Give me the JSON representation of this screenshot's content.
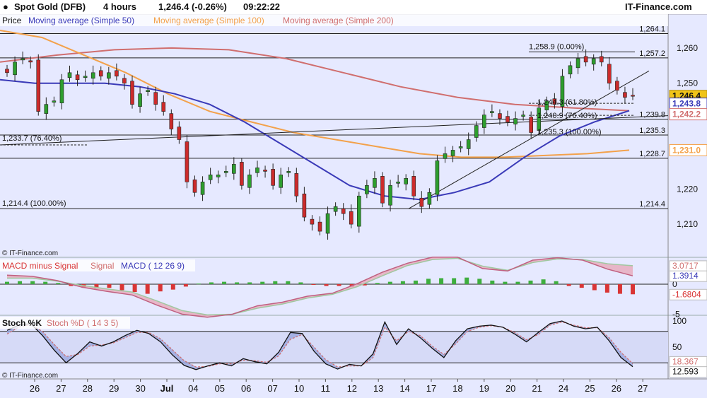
{
  "header": {
    "instrument": "Spot Gold (DFB)",
    "timeframe": "4 hours",
    "last_change": "1,246.4 (-0.26%)",
    "time": "09:22:22",
    "brand": "IT-Finance.com",
    "copyright": "© IT-Finance.com"
  },
  "legend": {
    "price": "Price",
    "ma50": "Moving average (Simple 50)",
    "ma100": "Moving average (Simple 100)",
    "ma200": "Moving average (Simple 200)",
    "macd_hist": "MACD minus Signal",
    "macd_signal": "Signal",
    "macd_main": "MACD ( 12 26 9)",
    "stoch_k": "Stoch %K",
    "stoch_d": "Stoch %D ( 14 3 5)"
  },
  "colors": {
    "background": "#e6e9ff",
    "candle_up": "#2e9e2e",
    "candle_down": "#cc2b2b",
    "ma50": "#3a3ab8",
    "ma100": "#f3a14a",
    "ma200": "#d06e6e",
    "hist_up": "#3fae3f",
    "hist_down": "#d93535",
    "macd_fill": "#9fd09f",
    "signal_fill": "#e7a0b0"
  },
  "chart_data": [
    {
      "type": "candlestick",
      "title": "Spot Gold (DFB) 4 hours",
      "ylim": [
        1203,
        1266
      ],
      "yticks": [
        1210,
        1220,
        1230,
        1240,
        1250,
        1260
      ],
      "ytick_labels": [
        "1,210",
        "1,220",
        "",
        "",
        "1,250",
        "1,260"
      ],
      "xtick_labels": [
        "26",
        "27",
        "28",
        "29",
        "30",
        "Jul",
        "04",
        "05",
        "06",
        "07",
        "10",
        "11",
        "12",
        "13",
        "14",
        "17",
        "18",
        "19",
        "20",
        "21",
        "24",
        "25",
        "26",
        "27"
      ],
      "series": [
        {
          "name": "Price",
          "closes": [
            1253,
            1256,
            1257,
            1256,
            1242,
            1244,
            1245,
            1251,
            1253,
            1251,
            1252,
            1253,
            1252,
            1253,
            1252,
            1250,
            1244,
            1247,
            1248,
            1244,
            1242,
            1237,
            1234,
            1222,
            1219,
            1222,
            1224,
            1224,
            1225,
            1227,
            1221,
            1224,
            1226,
            1225,
            1221,
            1224,
            1225,
            1218,
            1212,
            1210,
            1208,
            1213,
            1215,
            1213,
            1210,
            1218,
            1221,
            1223,
            1216,
            1221,
            1222,
            1223,
            1218,
            1215,
            1219,
            1228,
            1230,
            1231,
            1232,
            1234,
            1238,
            1241,
            1242,
            1240,
            1239,
            1240,
            1241,
            1236,
            1243,
            1245,
            1244,
            1252,
            1255,
            1257,
            1256,
            1257,
            1256,
            1250,
            1248,
            1246,
            1246.4
          ]
        },
        {
          "name": "Moving average (Simple 50)",
          "values": [
            1251,
            1250,
            1250,
            1250,
            1249,
            1247,
            1244,
            1239,
            1233,
            1227,
            1221,
            1218,
            1217,
            1219,
            1222,
            1229,
            1235,
            1239,
            1242.2
          ]
        },
        {
          "name": "Moving average (Simple 100)",
          "values": [
            1265,
            1263,
            1258,
            1253,
            1247,
            1242,
            1239,
            1236,
            1234,
            1232,
            1230,
            1229,
            1229,
            1229.5,
            1230,
            1231
          ]
        },
        {
          "name": "Moving average (Simple 200)",
          "values": [
            1256,
            1258,
            1259.5,
            1260,
            1259.5,
            1257,
            1253,
            1249,
            1246,
            1244,
            1243,
            1242.2
          ]
        }
      ],
      "horizontal_levels": [
        {
          "value": 1264.1,
          "label": "1,264.1"
        },
        {
          "value": 1257.2,
          "label": "1,257.2"
        },
        {
          "value": 1239.8,
          "label": "1,239.8"
        },
        {
          "value": 1235.3,
          "label": "1,235.3"
        },
        {
          "value": 1228.7,
          "label": "1,228.7"
        },
        {
          "value": 1214.4,
          "label": "1,214.4"
        }
      ],
      "price_tags": [
        {
          "value": 1246.4,
          "label": "1,246.4",
          "color": "#f0c419"
        },
        {
          "value": 1243.8,
          "label": "1,243.8",
          "color": "#3a3ab8"
        },
        {
          "value": 1242.2,
          "label": "1,242.2",
          "color": "#d06e6e"
        },
        {
          "value": 1231.0,
          "label": "1,231.0",
          "color": "#f3a14a"
        }
      ],
      "fibonacci_labels": [
        {
          "label": "1,258.9 (0.00%)",
          "value": 1258.9
        },
        {
          "label": "1,244.3 (61.80%)",
          "value": 1244.3
        },
        {
          "label": "1,240.9 (76.40%)",
          "value": 1240.9
        },
        {
          "label": "1,235.3 (100.00%)",
          "value": 1235.3
        },
        {
          "label": "1,233.7 (76.40%)",
          "value": 1233.7
        },
        {
          "label": "1,214.4 (100.00%)",
          "value": 1214.4
        }
      ]
    },
    {
      "type": "bar",
      "title": "MACD ( 12 26 9)",
      "yticks": [
        0,
        -5
      ],
      "ytick_labels": [
        "0",
        "-5"
      ],
      "readouts": [
        "3.0717",
        "1.3914",
        "-1.6804"
      ],
      "series": [
        {
          "name": "MACD minus Signal",
          "values": [
            0.4,
            0.5,
            0.5,
            0.4,
            0.2,
            -0.3,
            -0.6,
            -0.7,
            -0.6,
            -1.0,
            -1.3,
            -1.6,
            -1.2,
            -0.9,
            -0.4,
            0.1,
            0.3,
            0.4,
            0.3,
            0.3,
            0.4,
            0.5,
            0.5,
            0.3,
            -0.1,
            -0.3,
            -0.3,
            -0.4,
            -0.2,
            0.2,
            0.4,
            0.5,
            0.6,
            0.9,
            1.0,
            1.0,
            1.1,
            0.9,
            0.6,
            0.4,
            0.4,
            0.6,
            0.8,
            0.5,
            -0.3,
            -0.6,
            -1.0,
            -1.4,
            -1.6,
            -1.68
          ]
        },
        {
          "name": "MACD",
          "values": [
            1.5,
            1.3,
            0.6,
            -0.5,
            -1.2,
            -1.8,
            -3.5,
            -5.0,
            -5.5,
            -5.0,
            -3.6,
            -3.0,
            -2.0,
            -1.5,
            0.1,
            2.0,
            3.5,
            4.5,
            4.5,
            2.6,
            2.2,
            4.0,
            4.4,
            4.0,
            2.5,
            1.39
          ]
        },
        {
          "name": "Signal",
          "values": [
            1.0,
            1.0,
            0.5,
            -0.2,
            -0.8,
            -1.3,
            -2.8,
            -4.4,
            -5.1,
            -5.0,
            -4.0,
            -3.3,
            -2.3,
            -1.7,
            -0.4,
            1.4,
            3.1,
            4.1,
            4.3,
            3.0,
            2.3,
            3.6,
            4.2,
            4.1,
            3.4,
            3.07
          ]
        }
      ]
    },
    {
      "type": "line",
      "title": "Stoch %D ( 14 3 5)",
      "ylim": [
        0,
        100
      ],
      "yticks": [
        100,
        50
      ],
      "ytick_labels": [
        "100",
        "50"
      ],
      "readouts": [
        "18.367",
        "12.593"
      ],
      "series": [
        {
          "name": "Stoch %K",
          "values": [
            82,
            92,
            95,
            72,
            44,
            20,
            38,
            60,
            52,
            60,
            72,
            82,
            76,
            60,
            35,
            15,
            7,
            14,
            20,
            14,
            28,
            22,
            18,
            40,
            78,
            76,
            42,
            18,
            8,
            17,
            14,
            37,
            98,
            55,
            85,
            68,
            48,
            30,
            62,
            85,
            90,
            92,
            88,
            75,
            60,
            78,
            95,
            100,
            90,
            85,
            88,
            62,
            30,
            12.6
          ]
        },
        {
          "name": "Stoch %D",
          "values": [
            75,
            88,
            93,
            80,
            55,
            32,
            36,
            52,
            54,
            58,
            68,
            78,
            78,
            66,
            45,
            24,
            12,
            13,
            18,
            18,
            25,
            24,
            21,
            33,
            65,
            74,
            50,
            26,
            12,
            14,
            14,
            30,
            88,
            62,
            80,
            72,
            52,
            36,
            56,
            80,
            88,
            91,
            88,
            78,
            64,
            74,
            92,
            98,
            92,
            87,
            87,
            68,
            40,
            18.4
          ]
        }
      ]
    }
  ]
}
